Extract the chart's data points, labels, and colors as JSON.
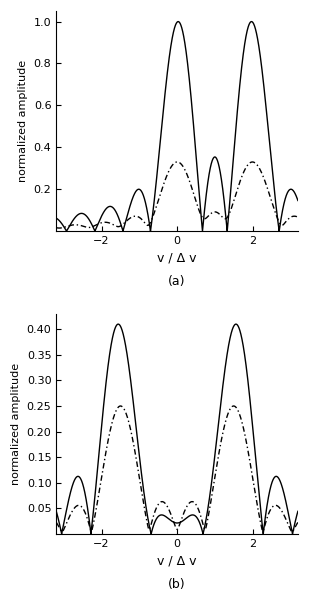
{
  "subplot_a": {
    "ylim": [
      0,
      1.05
    ],
    "yticks": [
      0.2,
      0.4,
      0.6,
      0.8,
      1.0
    ],
    "ylabel": "normalized amplitude",
    "xlabel": "v / Δ v",
    "label": "(a)"
  },
  "subplot_b": {
    "ylim": [
      0,
      0.43
    ],
    "yticks": [
      0.05,
      0.1,
      0.15,
      0.2,
      0.25,
      0.3,
      0.35,
      0.4
    ],
    "ylabel": "normalized amplitude",
    "xlabel": "v / Δ v",
    "label": "(b)"
  },
  "xlim": [
    -3.2,
    3.2
  ],
  "xticks": [
    -2,
    0,
    2
  ],
  "background_color": "#ffffff",
  "tau1": 1.0,
  "tau2": 1.0,
  "nu1_a": 2.0,
  "nu2_a": 0.0,
  "nu1_b": 0.0,
  "nu2_b": -2.0,
  "phase_a": 0.0,
  "phase_b": 0.0
}
